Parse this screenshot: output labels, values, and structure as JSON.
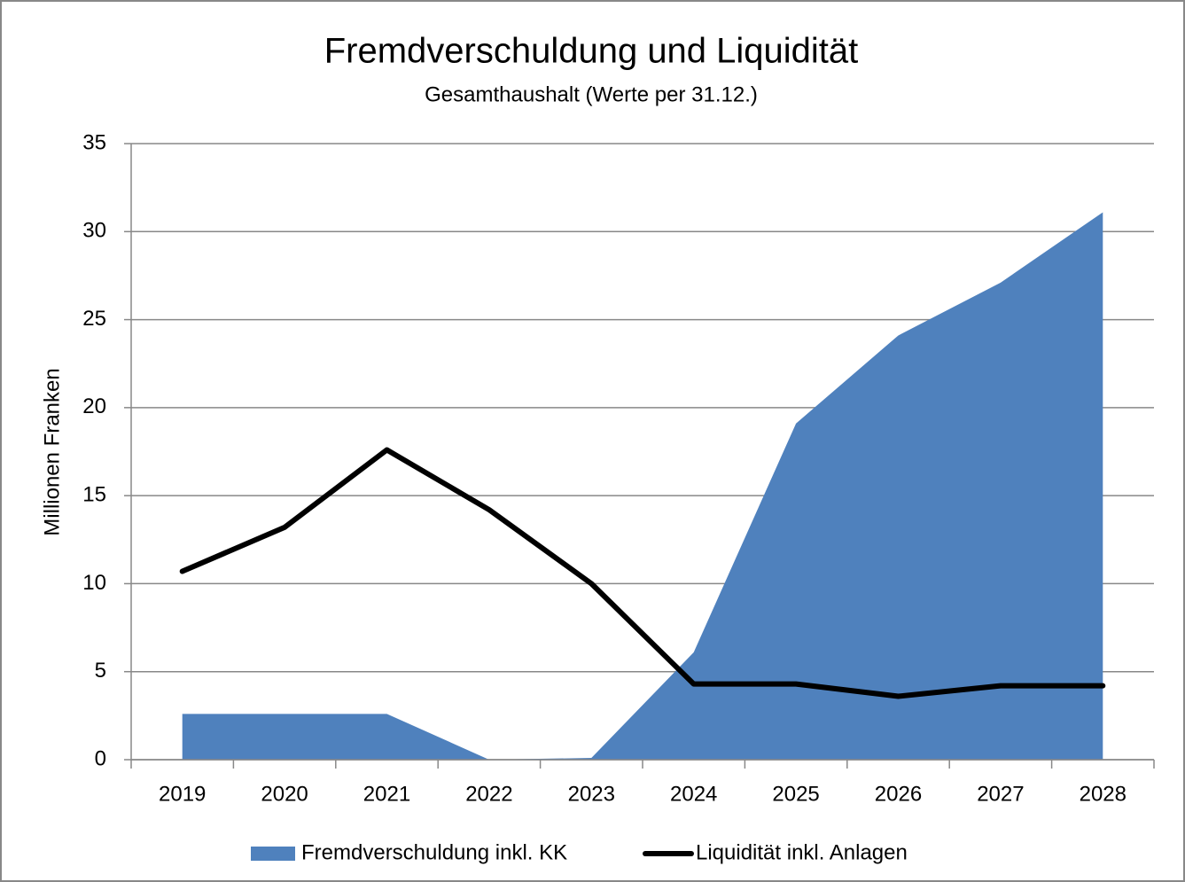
{
  "chart_data": {
    "type": "area_line",
    "title": "Fremdverschuldung und Liquidität",
    "subtitle": "Gesamthaushalt (Werte per 31.12.)",
    "y_label": "Millionen Franken",
    "categories": [
      "2019",
      "2020",
      "2021",
      "2022",
      "2023",
      "2024",
      "2025",
      "2026",
      "2027",
      "2028"
    ],
    "series": [
      {
        "name": "Fremdverschuldung inkl. KK",
        "type": "area",
        "color": "#4f81bd",
        "values": [
          2.6,
          2.6,
          2.6,
          0,
          0.1,
          6.1,
          19.1,
          24.1,
          27.1,
          31.1
        ]
      },
      {
        "name": "Liquidität inkl. Anlagen",
        "type": "line",
        "color": "#000000",
        "values": [
          10.7,
          13.2,
          17.6,
          14.2,
          10.0,
          4.3,
          4.3,
          3.6,
          4.2,
          4.2
        ]
      }
    ],
    "ylim": [
      0,
      35
    ],
    "yticks": [
      0,
      5,
      10,
      15,
      20,
      25,
      30,
      35
    ],
    "grid": true,
    "legend": "bottom"
  }
}
